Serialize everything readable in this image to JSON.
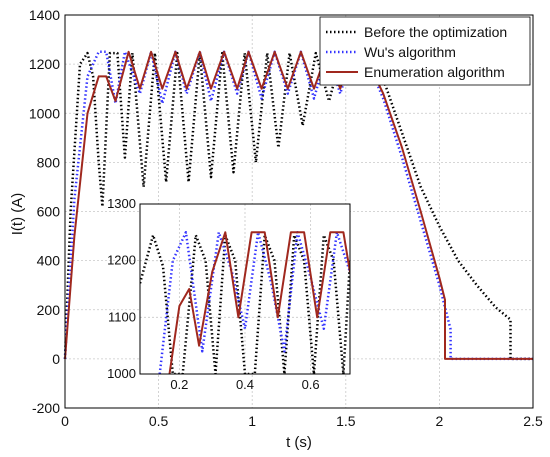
{
  "chart_data": {
    "type": "line",
    "xlabel": "t (s)",
    "ylabel": "I(t) (A)",
    "xlim": [
      0,
      2.5
    ],
    "ylim": [
      -200,
      1400
    ],
    "xticks": [
      "0",
      "0.5",
      "1",
      "1.5",
      "2",
      "2.5"
    ],
    "yticks": [
      "-200",
      "0",
      "200",
      "400",
      "600",
      "800",
      "1000",
      "1200",
      "1400"
    ],
    "grid": true,
    "legend_position": "top-right",
    "series": [
      {
        "name": "Before the optimization",
        "color": "#000000",
        "style": "dotted",
        "x": [
          0,
          0.03,
          0.08,
          0.12,
          0.15,
          0.18,
          0.2,
          0.24,
          0.28,
          0.32,
          0.36,
          0.42,
          0.48,
          0.54,
          0.6,
          0.66,
          0.72,
          0.78,
          0.84,
          0.9,
          0.96,
          1.02,
          1.08,
          1.14,
          1.2,
          1.27,
          1.34,
          1.41,
          1.48,
          1.55,
          1.62,
          1.7,
          1.8,
          1.9,
          2.0,
          2.1,
          2.2,
          2.3,
          2.38,
          2.38,
          2.5
        ],
        "y": [
          0,
          600,
          1200,
          1245,
          1150,
          800,
          620,
          1245,
          1245,
          820,
          1245,
          700,
          1245,
          720,
          1245,
          720,
          1245,
          740,
          1245,
          760,
          1245,
          800,
          1245,
          860,
          1245,
          950,
          1245,
          1050,
          1245,
          1200,
          1250,
          1140,
          920,
          700,
          540,
          400,
          300,
          210,
          160,
          0,
          0
        ]
      },
      {
        "name": "Wu's algorithm",
        "color": "#3333ff",
        "style": "dotted",
        "x": [
          0,
          0.05,
          0.12,
          0.18,
          0.22,
          0.27,
          0.32,
          0.4,
          0.46,
          0.52,
          0.59,
          0.65,
          0.72,
          0.78,
          0.85,
          0.92,
          0.98,
          1.05,
          1.12,
          1.19,
          1.26,
          1.33,
          1.4,
          1.47,
          1.54,
          1.6,
          1.7,
          1.8,
          1.9,
          2.0,
          2.06,
          2.06,
          2.5
        ],
        "y": [
          0,
          650,
          1150,
          1250,
          1250,
          1040,
          1250,
          1080,
          1250,
          1040,
          1250,
          1080,
          1250,
          1050,
          1250,
          1080,
          1250,
          1060,
          1250,
          1080,
          1250,
          1060,
          1250,
          1080,
          1250,
          1240,
          1060,
          820,
          560,
          300,
          120,
          0,
          0
        ]
      },
      {
        "name": "Enumeration algorithm",
        "color": "#a0281e",
        "style": "solid",
        "x": [
          0,
          0.05,
          0.12,
          0.18,
          0.22,
          0.27,
          0.34,
          0.4,
          0.46,
          0.52,
          0.59,
          0.65,
          0.72,
          0.78,
          0.85,
          0.92,
          0.98,
          1.05,
          1.12,
          1.19,
          1.26,
          1.33,
          1.4,
          1.47,
          1.54,
          1.6,
          1.7,
          1.8,
          1.9,
          2.0,
          2.03,
          2.03,
          2.5
        ],
        "y": [
          0,
          500,
          1000,
          1150,
          1150,
          1050,
          1250,
          1100,
          1250,
          1100,
          1250,
          1100,
          1250,
          1100,
          1250,
          1100,
          1250,
          1100,
          1250,
          1100,
          1250,
          1100,
          1250,
          1100,
          1250,
          1240,
          1080,
          860,
          600,
          330,
          240,
          0,
          0
        ]
      }
    ],
    "inset": {
      "xlim": [
        0.08,
        0.72
      ],
      "ylim": [
        1000,
        1300
      ],
      "xticks": [
        "0.2",
        "0.4",
        "0.6"
      ],
      "yticks": [
        "1000",
        "1100",
        "1200",
        "1300"
      ],
      "series": [
        {
          "name": "Before the optimization",
          "x": [
            0.08,
            0.12,
            0.15,
            0.18,
            0.21,
            0.25,
            0.28,
            0.31,
            0.34,
            0.37,
            0.4,
            0.43,
            0.46,
            0.49,
            0.52,
            0.55,
            0.58,
            0.61,
            0.64,
            0.67,
            0.7,
            0.72
          ],
          "y": [
            1160,
            1245,
            1190,
            1000,
            1000,
            1245,
            1200,
            1000,
            1245,
            1200,
            1000,
            1000,
            1245,
            1200,
            1000,
            1245,
            1200,
            1000,
            1245,
            1200,
            1000,
            1200
          ]
        },
        {
          "name": "Wu's algorithm",
          "x": [
            0.14,
            0.18,
            0.22,
            0.27,
            0.32,
            0.36,
            0.4,
            0.44,
            0.48,
            0.52,
            0.56,
            0.6,
            0.64,
            0.68,
            0.72
          ],
          "y": [
            1000,
            1200,
            1250,
            1040,
            1250,
            1180,
            1080,
            1250,
            1160,
            1040,
            1250,
            1170,
            1080,
            1250,
            1180
          ]
        },
        {
          "name": "Enumeration algorithm",
          "x": [
            0.17,
            0.2,
            0.23,
            0.26,
            0.3,
            0.34,
            0.38,
            0.42,
            0.46,
            0.5,
            0.54,
            0.58,
            0.62,
            0.66,
            0.7,
            0.72
          ],
          "y": [
            1000,
            1120,
            1150,
            1050,
            1180,
            1250,
            1100,
            1250,
            1250,
            1100,
            1250,
            1250,
            1100,
            1250,
            1250,
            1180
          ]
        }
      ]
    }
  }
}
